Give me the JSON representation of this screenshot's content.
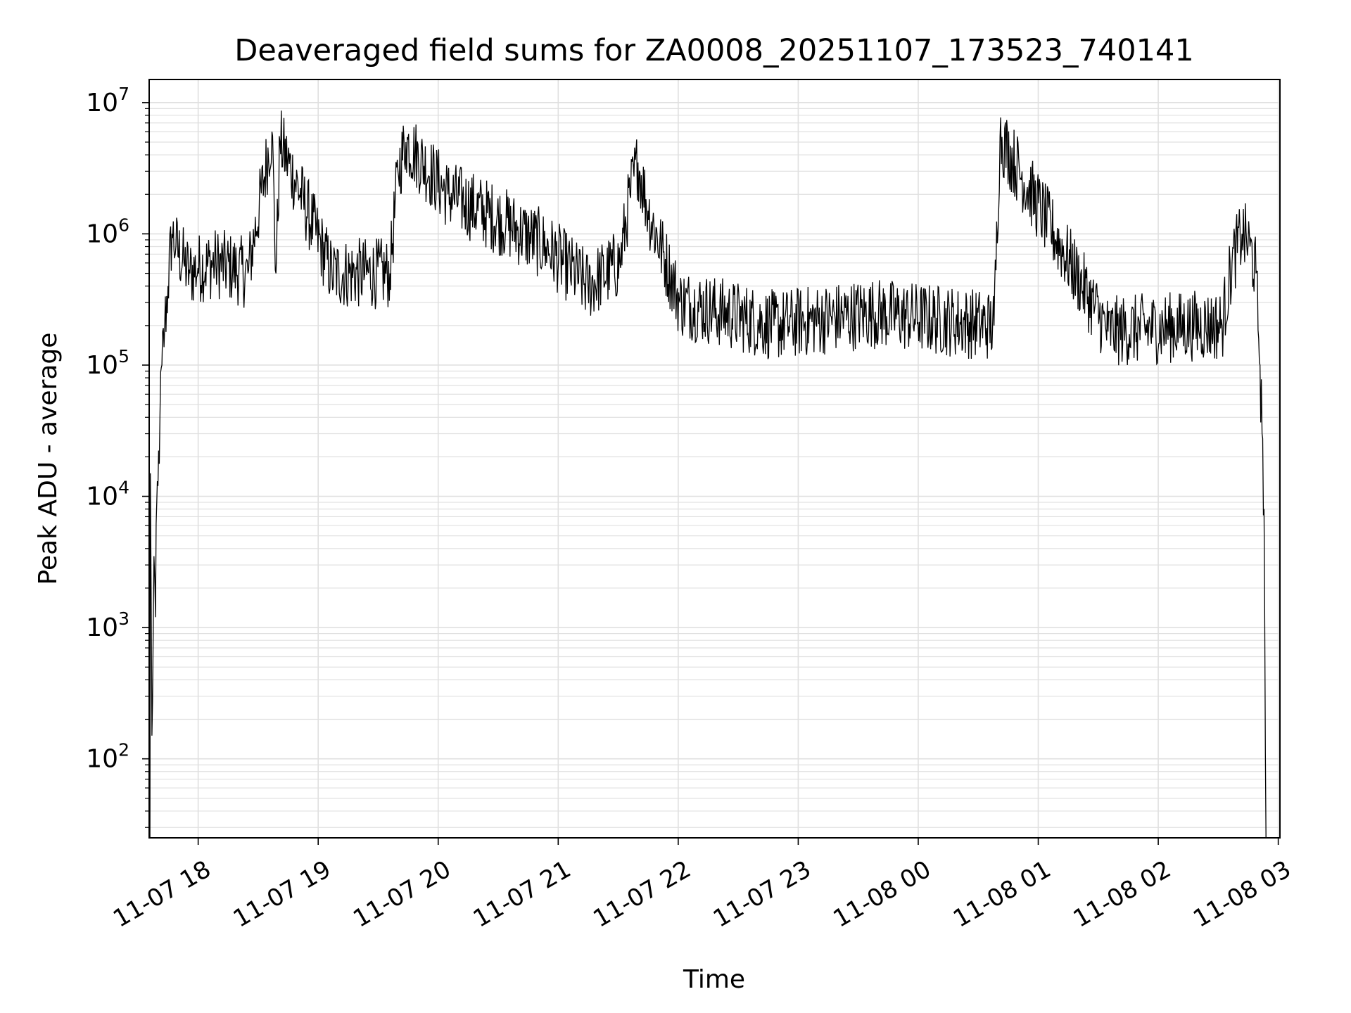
{
  "chart_data": {
    "type": "line",
    "title": "Deaveraged field sums for ZA0008_20251107_173523_740141",
    "xlabel": "Time",
    "ylabel": "Peak ADU - average",
    "y_scale": "log",
    "ylim": [
      25,
      15000000
    ],
    "xlim": [
      "2025-11-07T17:35:30",
      "2025-11-08T03:00:00"
    ],
    "grid": true,
    "line_color": "#000000",
    "grid_color": "#e0e0e0",
    "x_ticks": [
      {
        "t": "2025-11-07T18:00:00",
        "label": "11-07 18"
      },
      {
        "t": "2025-11-07T19:00:00",
        "label": "11-07 19"
      },
      {
        "t": "2025-11-07T20:00:00",
        "label": "11-07 20"
      },
      {
        "t": "2025-11-07T21:00:00",
        "label": "11-07 21"
      },
      {
        "t": "2025-11-07T22:00:00",
        "label": "11-07 22"
      },
      {
        "t": "2025-11-07T23:00:00",
        "label": "11-07 23"
      },
      {
        "t": "2025-11-08T00:00:00",
        "label": "11-08 00"
      },
      {
        "t": "2025-11-08T01:00:00",
        "label": "11-08 01"
      },
      {
        "t": "2025-11-08T02:00:00",
        "label": "11-08 02"
      },
      {
        "t": "2025-11-08T03:00:00",
        "label": "11-08 03"
      }
    ],
    "y_ticks": [
      {
        "value": 100,
        "base": "10",
        "exp": "2"
      },
      {
        "value": 1000,
        "base": "10",
        "exp": "3"
      },
      {
        "value": 10000,
        "base": "10",
        "exp": "4"
      },
      {
        "value": 100000,
        "base": "10",
        "exp": "5"
      },
      {
        "value": 1000000,
        "base": "10",
        "exp": "6"
      },
      {
        "value": 10000000,
        "base": "10",
        "exp": "7"
      }
    ],
    "series": [
      {
        "x": [
          "2025-11-07T17:35:53",
          "2025-11-07T17:36:05",
          "2025-11-07T17:36:53",
          "2025-11-07T17:37:29",
          "2025-11-07T17:37:53",
          "2025-11-07T17:38:41",
          "2025-11-07T17:39:17",
          "2025-11-07T17:39:53",
          "2025-11-07T17:40:53",
          "2025-11-07T17:41:53",
          "2025-11-07T17:43:17",
          "2025-11-07T17:44:53",
          "2025-11-07T17:46:53",
          "2025-11-07T17:48:53",
          "2025-11-07T17:52:53",
          "2025-11-07T17:55:53",
          "2025-11-07T17:59:53",
          "2025-11-07T18:08:53",
          "2025-11-07T18:24:53",
          "2025-11-07T18:36:53",
          "2025-11-07T18:38:53",
          "2025-11-07T18:40:53",
          "2025-11-07T19:06:53",
          "2025-11-07T19:35:53",
          "2025-11-07T19:39:53",
          "2025-11-07T19:43:53",
          "2025-11-07T20:04:53",
          "2025-11-07T20:33:53",
          "2025-11-07T20:53:53",
          "2025-11-07T21:14:53",
          "2025-11-07T21:30:53",
          "2025-11-07T21:35:53",
          "2025-11-07T21:39:53",
          "2025-11-07T21:44:53",
          "2025-11-07T22:00:53",
          "2025-11-07T22:47:53",
          "2025-11-07T23:36:53",
          "2025-11-08T00:37:53",
          "2025-11-08T00:40:53",
          "2025-11-08T01:34:53",
          "2025-11-08T02:17:53",
          "2025-11-08T02:31:53",
          "2025-11-08T02:36:53",
          "2025-11-08T02:41:53",
          "2025-11-08T02:45:53",
          "2025-11-08T02:48:53",
          "2025-11-08T02:50:53",
          "2025-11-08T02:51:53",
          "2025-11-08T02:52:53",
          "2025-11-08T02:53:53"
        ],
        "y": [
          25,
          15000,
          150,
          800,
          3500,
          1200,
          9000,
          12000,
          40000,
          100000,
          200000,
          400000,
          1000000,
          800000,
          600000,
          500000,
          550000,
          600000,
          500000,
          6000000,
          500000,
          5000000,
          500000,
          500000,
          3000000,
          5000000,
          2000000,
          1200000,
          800000,
          400000,
          600000,
          2000000,
          3500000,
          1500000,
          300000,
          200000,
          250000,
          200000,
          5500000,
          180000,
          200000,
          200000,
          600000,
          1000000,
          800000,
          500000,
          100000,
          30000,
          8000,
          25
        ]
      }
    ]
  }
}
